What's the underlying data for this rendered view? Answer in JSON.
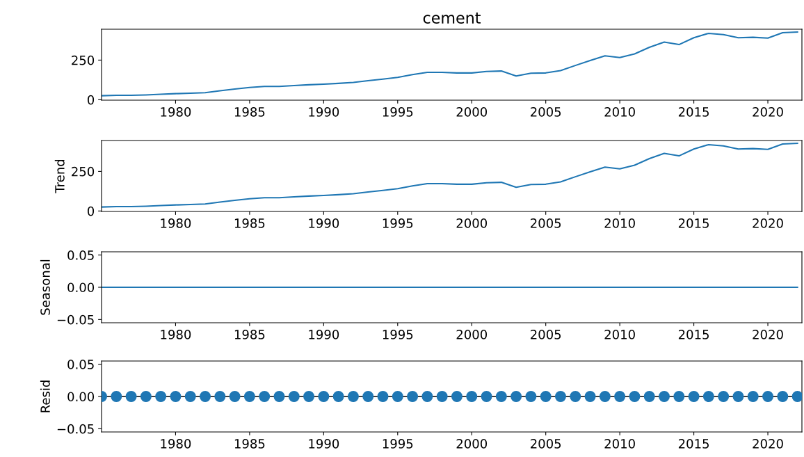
{
  "chart_data": [
    {
      "type": "line",
      "title": "cement",
      "x": [
        1975,
        1976,
        1977,
        1978,
        1979,
        1980,
        1981,
        1982,
        1983,
        1984,
        1985,
        1986,
        1987,
        1988,
        1989,
        1990,
        1991,
        1992,
        1993,
        1994,
        1995,
        1996,
        1997,
        1998,
        1999,
        2000,
        2001,
        2002,
        2003,
        2004,
        2005,
        2006,
        2007,
        2008,
        2009,
        2010,
        2011,
        2012,
        2013,
        2014,
        2015,
        2016,
        2017,
        2018,
        2019,
        2020,
        2021,
        2022
      ],
      "series": [
        {
          "color": "#1f77b4",
          "values": [
            25,
            28,
            28,
            30,
            34,
            38,
            41,
            44,
            56,
            67,
            77,
            84,
            84,
            89,
            94,
            98,
            103,
            109,
            120,
            130,
            141,
            158,
            173,
            173,
            169,
            169,
            178,
            181,
            150,
            167,
            169,
            184,
            216,
            247,
            277,
            266,
            289,
            331,
            364,
            348,
            391,
            419,
            411,
            391,
            394,
            389,
            423,
            427
          ]
        }
      ],
      "xlim": [
        1975,
        2022.3
      ],
      "xticks": [
        1980,
        1985,
        1990,
        1995,
        2000,
        2005,
        2010,
        2015,
        2020
      ],
      "ylim": [
        -3,
        445
      ],
      "yticks": [
        0,
        250
      ],
      "grid": false,
      "legend": false
    },
    {
      "type": "line",
      "ylabel": "Trend",
      "x": [
        1975,
        1976,
        1977,
        1978,
        1979,
        1980,
        1981,
        1982,
        1983,
        1984,
        1985,
        1986,
        1987,
        1988,
        1989,
        1990,
        1991,
        1992,
        1993,
        1994,
        1995,
        1996,
        1997,
        1998,
        1999,
        2000,
        2001,
        2002,
        2003,
        2004,
        2005,
        2006,
        2007,
        2008,
        2009,
        2010,
        2011,
        2012,
        2013,
        2014,
        2015,
        2016,
        2017,
        2018,
        2019,
        2020,
        2021,
        2022
      ],
      "series": [
        {
          "color": "#1f77b4",
          "values": [
            25,
            28,
            28,
            30,
            34,
            38,
            41,
            44,
            56,
            67,
            77,
            84,
            84,
            89,
            94,
            98,
            103,
            109,
            120,
            130,
            141,
            158,
            173,
            173,
            169,
            169,
            178,
            181,
            150,
            167,
            169,
            184,
            216,
            247,
            277,
            266,
            289,
            331,
            364,
            348,
            391,
            419,
            411,
            391,
            394,
            389,
            423,
            427
          ]
        }
      ],
      "xlim": [
        1975,
        2022.3
      ],
      "xticks": [
        1980,
        1985,
        1990,
        1995,
        2000,
        2005,
        2010,
        2015,
        2020
      ],
      "ylim": [
        -3,
        445
      ],
      "yticks": [
        0,
        250
      ],
      "grid": false,
      "legend": false
    },
    {
      "type": "line",
      "ylabel": "Seasonal",
      "x": [
        1975,
        1976,
        1977,
        1978,
        1979,
        1980,
        1981,
        1982,
        1983,
        1984,
        1985,
        1986,
        1987,
        1988,
        1989,
        1990,
        1991,
        1992,
        1993,
        1994,
        1995,
        1996,
        1997,
        1998,
        1999,
        2000,
        2001,
        2002,
        2003,
        2004,
        2005,
        2006,
        2007,
        2008,
        2009,
        2010,
        2011,
        2012,
        2013,
        2014,
        2015,
        2016,
        2017,
        2018,
        2019,
        2020,
        2021,
        2022
      ],
      "series": [
        {
          "color": "#1f77b4",
          "values": [
            0,
            0,
            0,
            0,
            0,
            0,
            0,
            0,
            0,
            0,
            0,
            0,
            0,
            0,
            0,
            0,
            0,
            0,
            0,
            0,
            0,
            0,
            0,
            0,
            0,
            0,
            0,
            0,
            0,
            0,
            0,
            0,
            0,
            0,
            0,
            0,
            0,
            0,
            0,
            0,
            0,
            0,
            0,
            0,
            0,
            0,
            0,
            0
          ]
        }
      ],
      "xlim": [
        1975,
        2022.3
      ],
      "xticks": [
        1980,
        1985,
        1990,
        1995,
        2000,
        2005,
        2010,
        2015,
        2020
      ],
      "ylim": [
        -0.055,
        0.055
      ],
      "yticks": [
        {
          "value": -0.05,
          "label": "−0.05"
        },
        {
          "value": 0,
          "label": "0.00"
        },
        {
          "value": 0.05,
          "label": "0.05"
        }
      ],
      "grid": false,
      "legend": false
    },
    {
      "type": "scatter",
      "ylabel": "Resid",
      "marker": "circle",
      "x": [
        1975,
        1976,
        1977,
        1978,
        1979,
        1980,
        1981,
        1982,
        1983,
        1984,
        1985,
        1986,
        1987,
        1988,
        1989,
        1990,
        1991,
        1992,
        1993,
        1994,
        1995,
        1996,
        1997,
        1998,
        1999,
        2000,
        2001,
        2002,
        2003,
        2004,
        2005,
        2006,
        2007,
        2008,
        2009,
        2010,
        2011,
        2012,
        2013,
        2014,
        2015,
        2016,
        2017,
        2018,
        2019,
        2020,
        2021,
        2022
      ],
      "series": [
        {
          "color": "#1f77b4",
          "values": [
            0,
            0,
            0,
            0,
            0,
            0,
            0,
            0,
            0,
            0,
            0,
            0,
            0,
            0,
            0,
            0,
            0,
            0,
            0,
            0,
            0,
            0,
            0,
            0,
            0,
            0,
            0,
            0,
            0,
            0,
            0,
            0,
            0,
            0,
            0,
            0,
            0,
            0,
            0,
            0,
            0,
            0,
            0,
            0,
            0,
            0,
            0,
            0
          ]
        }
      ],
      "ref_lines": [
        {
          "axis": "y",
          "value": 0,
          "color": "#000000"
        }
      ],
      "xlim": [
        1975,
        2022.3
      ],
      "xticks": [
        1980,
        1985,
        1990,
        1995,
        2000,
        2005,
        2010,
        2015,
        2020
      ],
      "ylim": [
        -0.055,
        0.055
      ],
      "yticks": [
        {
          "value": -0.05,
          "label": "−0.05"
        },
        {
          "value": 0,
          "label": "0.00"
        },
        {
          "value": 0.05,
          "label": "0.05"
        }
      ],
      "grid": false,
      "legend": false
    }
  ]
}
